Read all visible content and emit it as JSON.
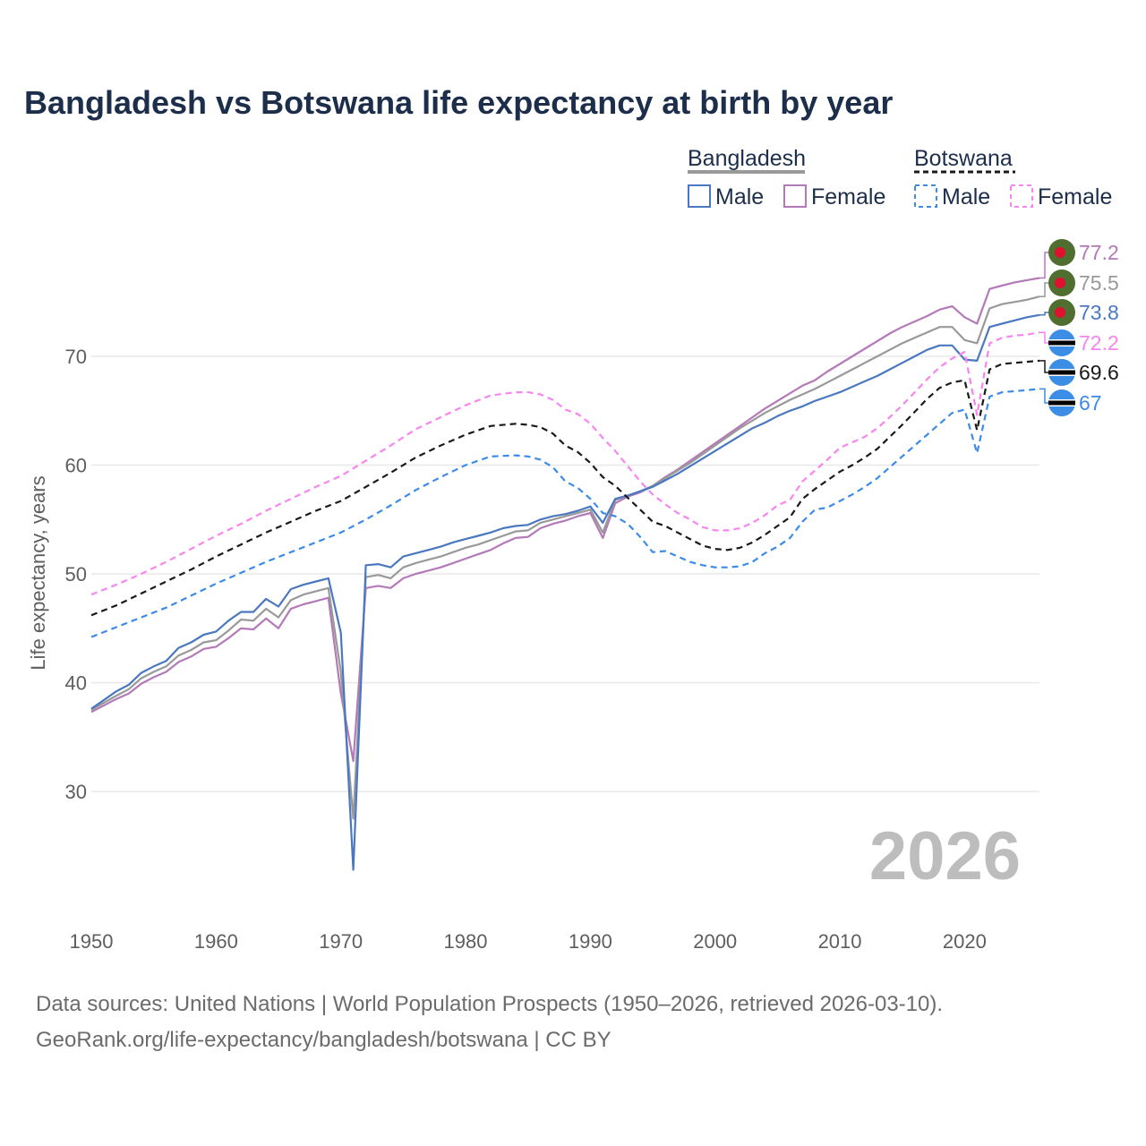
{
  "title": "Bangladesh vs Botswana life expectancy at birth by year",
  "source_line1": "Data sources: United Nations | World Population Prospects (1950–2026, retrieved 2026-03-10).",
  "source_line2": "GeoRank.org/life-expectancy/bangladesh/botswana | CC BY",
  "legend": {
    "groups": [
      {
        "name": "Bangladesh",
        "items": [
          "Male",
          "Female"
        ]
      },
      {
        "name": "Botswana",
        "items": [
          "Male",
          "Female"
        ]
      }
    ]
  },
  "colors": {
    "bd_male": "#4a78c0",
    "bd_female": "#b479b8",
    "bd_total": "#999999",
    "bw_male": "#3d8be8",
    "bw_female": "#f884f0",
    "bw_total": "#1a1a1a",
    "grid": "#e8e8e8"
  },
  "chart_data": {
    "type": "line",
    "title": "Bangladesh vs Botswana life expectancy at birth by year",
    "xlabel": "",
    "ylabel": "Life expectancy, years",
    "xlim": [
      1950,
      2026
    ],
    "ylim": [
      20,
      80
    ],
    "x_ticks": [
      1950,
      1960,
      1970,
      1980,
      1990,
      2000,
      2010,
      2020
    ],
    "y_ticks": [
      30,
      40,
      50,
      60,
      70
    ],
    "current_year": "2026",
    "end_labels": [
      "77.2",
      "75.5",
      "73.8",
      "72.2",
      "69.6",
      "67"
    ],
    "series": [
      {
        "key": "bd_female",
        "name": "Bangladesh Female",
        "dashed": false,
        "end_label": "77.2",
        "x": [
          1950,
          1952,
          1953,
          1954,
          1955,
          1956,
          1957,
          1958,
          1959,
          1960,
          1961,
          1962,
          1963,
          1964,
          1965,
          1966,
          1967,
          1968,
          1969,
          1970,
          1971,
          1972,
          1973,
          1974,
          1975,
          1976,
          1977,
          1978,
          1979,
          1980,
          1981,
          1982,
          1983,
          1984,
          1985,
          1986,
          1987,
          1988,
          1989,
          1990,
          1991,
          1992,
          1993,
          1994,
          1995,
          1996,
          1997,
          1998,
          1999,
          2000,
          2001,
          2002,
          2003,
          2004,
          2005,
          2006,
          2007,
          2008,
          2009,
          2010,
          2011,
          2012,
          2013,
          2014,
          2015,
          2016,
          2017,
          2018,
          2019,
          2020,
          2021,
          2022,
          2023,
          2024,
          2025,
          2026
        ],
        "y": [
          37.3,
          38.5,
          39.0,
          39.9,
          40.5,
          41.0,
          41.9,
          42.4,
          43.1,
          43.3,
          44.1,
          45.0,
          44.9,
          45.9,
          45.0,
          46.8,
          47.2,
          47.5,
          47.8,
          39.0,
          32.8,
          48.7,
          48.9,
          48.7,
          49.6,
          50.0,
          50.3,
          50.6,
          51.0,
          51.4,
          51.8,
          52.2,
          52.8,
          53.3,
          53.4,
          54.2,
          54.6,
          54.9,
          55.3,
          55.6,
          53.3,
          56.5,
          57.1,
          57.5,
          58.1,
          58.9,
          59.6,
          60.4,
          61.2,
          62.0,
          62.8,
          63.6,
          64.4,
          65.2,
          65.9,
          66.6,
          67.3,
          67.8,
          68.6,
          69.3,
          70.0,
          70.7,
          71.4,
          72.1,
          72.7,
          73.2,
          73.7,
          74.3,
          74.6,
          73.6,
          73.0,
          76.2,
          76.5,
          76.8,
          77.0,
          77.2
        ]
      },
      {
        "key": "bd_total",
        "name": "Bangladesh Total",
        "dashed": false,
        "end_label": "75.5",
        "x": [
          1950,
          1952,
          1953,
          1954,
          1955,
          1956,
          1957,
          1958,
          1959,
          1960,
          1961,
          1962,
          1963,
          1964,
          1965,
          1966,
          1967,
          1968,
          1969,
          1970,
          1971,
          1972,
          1973,
          1974,
          1975,
          1976,
          1977,
          1978,
          1979,
          1980,
          1981,
          1982,
          1983,
          1984,
          1985,
          1986,
          1987,
          1988,
          1989,
          1990,
          1991,
          1992,
          1993,
          1994,
          1995,
          1996,
          1997,
          1998,
          1999,
          2000,
          2001,
          2002,
          2003,
          2004,
          2005,
          2006,
          2007,
          2008,
          2009,
          2010,
          2011,
          2012,
          2013,
          2014,
          2015,
          2016,
          2017,
          2018,
          2019,
          2020,
          2021,
          2022,
          2023,
          2024,
          2025,
          2026
        ],
        "y": [
          37.5,
          38.8,
          39.4,
          40.4,
          41.0,
          41.5,
          42.5,
          43.0,
          43.7,
          43.9,
          44.8,
          45.8,
          45.7,
          46.8,
          46.0,
          47.6,
          48.1,
          48.4,
          48.7,
          41.0,
          27.5,
          49.7,
          49.9,
          49.6,
          50.6,
          51.0,
          51.3,
          51.6,
          52.0,
          52.4,
          52.7,
          53.1,
          53.5,
          53.9,
          54.0,
          54.7,
          55.0,
          55.3,
          55.6,
          55.9,
          53.8,
          56.8,
          57.2,
          57.6,
          58.1,
          58.8,
          59.5,
          60.2,
          61.0,
          61.8,
          62.6,
          63.4,
          64.1,
          64.8,
          65.4,
          66.0,
          66.5,
          67.0,
          67.6,
          68.2,
          68.8,
          69.4,
          70.0,
          70.6,
          71.2,
          71.7,
          72.2,
          72.7,
          72.7,
          71.5,
          71.2,
          74.4,
          74.8,
          75.0,
          75.2,
          75.5
        ]
      },
      {
        "key": "bd_male",
        "name": "Bangladesh Male",
        "dashed": false,
        "end_label": "73.8",
        "x": [
          1950,
          1952,
          1953,
          1954,
          1955,
          1956,
          1957,
          1958,
          1959,
          1960,
          1961,
          1962,
          1963,
          1964,
          1965,
          1966,
          1967,
          1968,
          1969,
          1970,
          1971,
          1972,
          1973,
          1974,
          1975,
          1976,
          1977,
          1978,
          1979,
          1980,
          1981,
          1982,
          1983,
          1984,
          1985,
          1986,
          1987,
          1988,
          1989,
          1990,
          1991,
          1992,
          1993,
          1994,
          1995,
          1996,
          1997,
          1998,
          1999,
          2000,
          2001,
          2002,
          2003,
          2004,
          2005,
          2006,
          2007,
          2008,
          2009,
          2010,
          2011,
          2012,
          2013,
          2014,
          2015,
          2016,
          2017,
          2018,
          2019,
          2020,
          2021,
          2022,
          2023,
          2024,
          2025,
          2026
        ],
        "y": [
          37.6,
          39.2,
          39.8,
          40.9,
          41.5,
          42.0,
          43.2,
          43.7,
          44.4,
          44.7,
          45.7,
          46.5,
          46.5,
          47.7,
          47.0,
          48.6,
          49.0,
          49.3,
          49.6,
          44.6,
          22.8,
          50.8,
          50.9,
          50.6,
          51.6,
          51.9,
          52.2,
          52.5,
          52.9,
          53.2,
          53.5,
          53.8,
          54.2,
          54.4,
          54.5,
          55.0,
          55.3,
          55.5,
          55.8,
          56.2,
          54.7,
          56.9,
          57.2,
          57.6,
          58.0,
          58.6,
          59.2,
          59.9,
          60.6,
          61.3,
          62.0,
          62.7,
          63.4,
          63.9,
          64.5,
          65.0,
          65.4,
          65.9,
          66.3,
          66.7,
          67.2,
          67.7,
          68.2,
          68.8,
          69.4,
          70.0,
          70.6,
          71.0,
          71.0,
          69.7,
          69.6,
          72.7,
          73.0,
          73.3,
          73.6,
          73.8
        ]
      },
      {
        "key": "bw_female",
        "name": "Botswana Female",
        "dashed": true,
        "end_label": "72.2",
        "x": [
          1950,
          1952,
          1954,
          1956,
          1958,
          1960,
          1962,
          1964,
          1966,
          1968,
          1970,
          1972,
          1974,
          1976,
          1978,
          1980,
          1982,
          1984,
          1985,
          1986,
          1987,
          1988,
          1989,
          1990,
          1991,
          1992,
          1993,
          1994,
          1995,
          1996,
          1997,
          1998,
          1999,
          2000,
          2001,
          2002,
          2003,
          2004,
          2005,
          2006,
          2007,
          2008,
          2009,
          2010,
          2011,
          2012,
          2013,
          2014,
          2015,
          2016,
          2017,
          2018,
          2019,
          2020,
          2021,
          2022,
          2023,
          2024,
          2025,
          2026
        ],
        "y": [
          48.1,
          49.0,
          50.0,
          51.1,
          52.3,
          53.5,
          54.6,
          55.8,
          56.9,
          58.0,
          59.0,
          60.4,
          61.8,
          63.3,
          64.4,
          65.5,
          66.4,
          66.7,
          66.7,
          66.5,
          66.0,
          65.1,
          64.7,
          63.8,
          62.5,
          61.3,
          59.9,
          58.5,
          57.3,
          56.4,
          55.6,
          55.0,
          54.3,
          54.0,
          54.0,
          54.2,
          54.7,
          55.4,
          56.3,
          56.8,
          58.5,
          59.5,
          60.5,
          61.6,
          62.1,
          62.6,
          63.4,
          64.4,
          65.5,
          66.7,
          67.9,
          69.0,
          69.8,
          70.4,
          64.6,
          71.2,
          71.7,
          71.9,
          72.0,
          72.2
        ]
      },
      {
        "key": "bw_total",
        "name": "Botswana Total",
        "dashed": true,
        "end_label": "69.6",
        "x": [
          1950,
          1952,
          1954,
          1956,
          1958,
          1960,
          1962,
          1964,
          1966,
          1968,
          1970,
          1972,
          1974,
          1976,
          1978,
          1980,
          1982,
          1984,
          1985,
          1986,
          1987,
          1988,
          1989,
          1990,
          1991,
          1992,
          1993,
          1994,
          1995,
          1996,
          1997,
          1998,
          1999,
          2000,
          2001,
          2002,
          2003,
          2004,
          2005,
          2006,
          2007,
          2008,
          2009,
          2010,
          2011,
          2012,
          2013,
          2014,
          2015,
          2016,
          2017,
          2018,
          2019,
          2020,
          2021,
          2022,
          2023,
          2024,
          2025,
          2026
        ],
        "y": [
          46.2,
          47.1,
          48.2,
          49.3,
          50.4,
          51.6,
          52.7,
          53.8,
          54.8,
          55.8,
          56.7,
          58.0,
          59.3,
          60.7,
          61.8,
          62.8,
          63.6,
          63.8,
          63.7,
          63.5,
          62.9,
          61.8,
          61.2,
          60.2,
          58.9,
          58.1,
          57.0,
          55.9,
          54.8,
          54.4,
          53.8,
          53.2,
          52.6,
          52.3,
          52.2,
          52.4,
          52.9,
          53.6,
          54.4,
          55.2,
          56.9,
          57.8,
          58.6,
          59.4,
          60.0,
          60.7,
          61.5,
          62.6,
          63.7,
          64.9,
          66.1,
          67.1,
          67.6,
          67.8,
          63.2,
          68.8,
          69.3,
          69.4,
          69.5,
          69.6
        ]
      },
      {
        "key": "bw_male",
        "name": "Botswana Male",
        "dashed": true,
        "end_label": "67",
        "x": [
          1950,
          1952,
          1954,
          1956,
          1958,
          1960,
          1962,
          1964,
          1966,
          1968,
          1970,
          1972,
          1974,
          1976,
          1978,
          1980,
          1982,
          1984,
          1985,
          1986,
          1987,
          1988,
          1989,
          1990,
          1991,
          1992,
          1993,
          1994,
          1995,
          1996,
          1997,
          1998,
          1999,
          2000,
          2001,
          2002,
          2003,
          2004,
          2005,
          2006,
          2007,
          2008,
          2009,
          2010,
          2011,
          2012,
          2013,
          2014,
          2015,
          2016,
          2017,
          2018,
          2019,
          2020,
          2021,
          2022,
          2023,
          2024,
          2025,
          2026
        ],
        "y": [
          44.2,
          45.1,
          46.0,
          46.9,
          48.0,
          49.1,
          50.1,
          51.1,
          52.0,
          52.9,
          53.8,
          55.0,
          56.3,
          57.7,
          58.9,
          60.0,
          60.8,
          60.9,
          60.8,
          60.5,
          59.8,
          58.5,
          57.9,
          56.9,
          55.6,
          55.3,
          54.6,
          53.4,
          52.0,
          52.1,
          51.6,
          51.1,
          50.8,
          50.6,
          50.6,
          50.7,
          51.1,
          51.9,
          52.5,
          53.3,
          54.8,
          55.9,
          56.1,
          56.7,
          57.3,
          58.0,
          58.8,
          59.8,
          60.8,
          61.8,
          62.8,
          63.8,
          64.8,
          65.1,
          61.1,
          66.3,
          66.7,
          66.8,
          66.9,
          67.0
        ]
      }
    ]
  }
}
